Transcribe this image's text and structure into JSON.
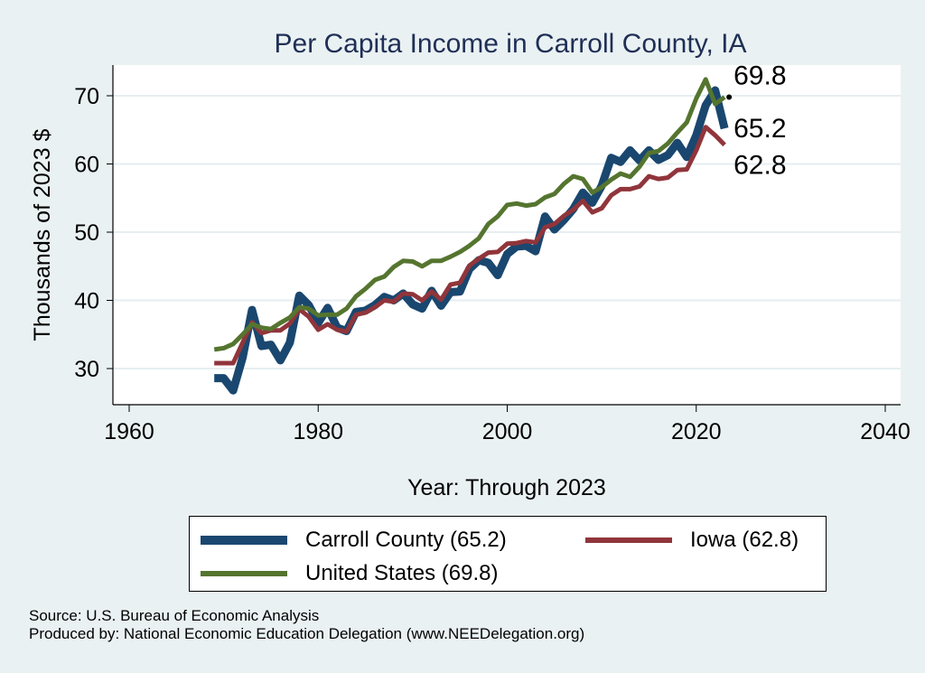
{
  "chart_data": {
    "type": "line",
    "title": "Per Capita Income in Carroll County, IA",
    "xlabel": "Year: Through 2023",
    "ylabel": "Thousands of 2023 $",
    "xlim": [
      1960,
      2040
    ],
    "ylim": [
      25,
      75
    ],
    "xticks": [
      1960,
      1980,
      2000,
      2020,
      2040
    ],
    "yticks": [
      30,
      40,
      50,
      60,
      70
    ],
    "grid": true,
    "legend_position": "bottom",
    "x": [
      1969,
      1970,
      1971,
      1972,
      1973,
      1974,
      1975,
      1976,
      1977,
      1978,
      1979,
      1980,
      1981,
      1982,
      1983,
      1984,
      1985,
      1986,
      1987,
      1988,
      1989,
      1990,
      1991,
      1992,
      1993,
      1994,
      1995,
      1996,
      1997,
      1998,
      1999,
      2000,
      2001,
      2002,
      2003,
      2004,
      2005,
      2006,
      2007,
      2008,
      2009,
      2010,
      2011,
      2012,
      2013,
      2014,
      2015,
      2016,
      2017,
      2018,
      2019,
      2020,
      2021,
      2022,
      2023
    ],
    "series": [
      {
        "name": "Carroll County (65.2)",
        "key": "carroll",
        "color": "#1a476f",
        "width": "thick",
        "values": [
          28.6,
          28.6,
          26.8,
          31.6,
          38.6,
          33.3,
          33.5,
          31.2,
          33.8,
          40.7,
          39.3,
          36.7,
          38.9,
          36.0,
          35.5,
          38.3,
          38.5,
          39.3,
          40.5,
          40.0,
          41.0,
          39.4,
          38.8,
          41.4,
          39.2,
          41.2,
          41.3,
          44.6,
          45.9,
          45.5,
          43.7,
          46.8,
          47.9,
          48.0,
          47.2,
          52.3,
          50.4,
          51.8,
          53.4,
          55.8,
          54.3,
          56.8,
          60.9,
          60.3,
          62.0,
          60.5,
          62.0,
          60.6,
          61.3,
          63.1,
          61.0,
          64.2,
          68.6,
          70.8,
          65.2
        ]
      },
      {
        "name": "Iowa (62.8)",
        "key": "iowa",
        "color": "#90353b",
        "width": "medium",
        "values": [
          30.8,
          30.8,
          30.8,
          33.8,
          36.8,
          35.2,
          35.6,
          35.6,
          36.6,
          38.7,
          37.6,
          35.7,
          36.5,
          35.7,
          35.4,
          37.9,
          38.2,
          39.0,
          40.0,
          39.8,
          41.0,
          40.9,
          40.0,
          41.3,
          40.1,
          42.3,
          42.6,
          45.1,
          46.1,
          47.0,
          47.1,
          48.3,
          48.4,
          48.7,
          48.5,
          50.7,
          51.2,
          52.4,
          53.3,
          54.6,
          52.9,
          53.5,
          55.4,
          56.3,
          56.3,
          56.7,
          58.2,
          57.8,
          58.0,
          59.1,
          59.2,
          62.0,
          65.4,
          64.2,
          62.8
        ]
      },
      {
        "name": "United States (69.8)",
        "key": "us",
        "color": "#55752f",
        "width": "medium",
        "values": [
          32.8,
          33.0,
          33.6,
          35.0,
          36.5,
          36.0,
          35.8,
          36.7,
          37.5,
          39.0,
          38.8,
          37.8,
          37.9,
          37.9,
          38.8,
          40.6,
          41.7,
          43.0,
          43.5,
          44.9,
          45.8,
          45.7,
          45.0,
          45.8,
          45.8,
          46.4,
          47.1,
          48.0,
          49.1,
          51.2,
          52.3,
          54.0,
          54.2,
          53.9,
          54.1,
          55.1,
          55.6,
          57.1,
          58.2,
          57.8,
          55.8,
          56.6,
          57.7,
          58.6,
          58.1,
          59.6,
          61.6,
          61.9,
          63.0,
          64.6,
          66.1,
          69.6,
          72.4,
          68.8,
          69.8
        ]
      }
    ],
    "end_labels": [
      {
        "text": "69.8",
        "value": 69.8,
        "series": "us"
      },
      {
        "text": "65.2",
        "value": 65.2,
        "series": "carroll"
      },
      {
        "text": "62.8",
        "value": 62.8,
        "series": "iowa"
      }
    ]
  },
  "legend": {
    "items": [
      {
        "label": "Carroll County (65.2)",
        "color": "#1a476f"
      },
      {
        "label": "Iowa (62.8)",
        "color": "#90353b"
      },
      {
        "label": "United States (69.8)",
        "color": "#55752f"
      }
    ]
  },
  "footer": {
    "source": "Source: U.S. Bureau of Economic Analysis",
    "produced_by": "Produced by: National Economic Education Delegation (www.NEEDelegation.org)"
  }
}
